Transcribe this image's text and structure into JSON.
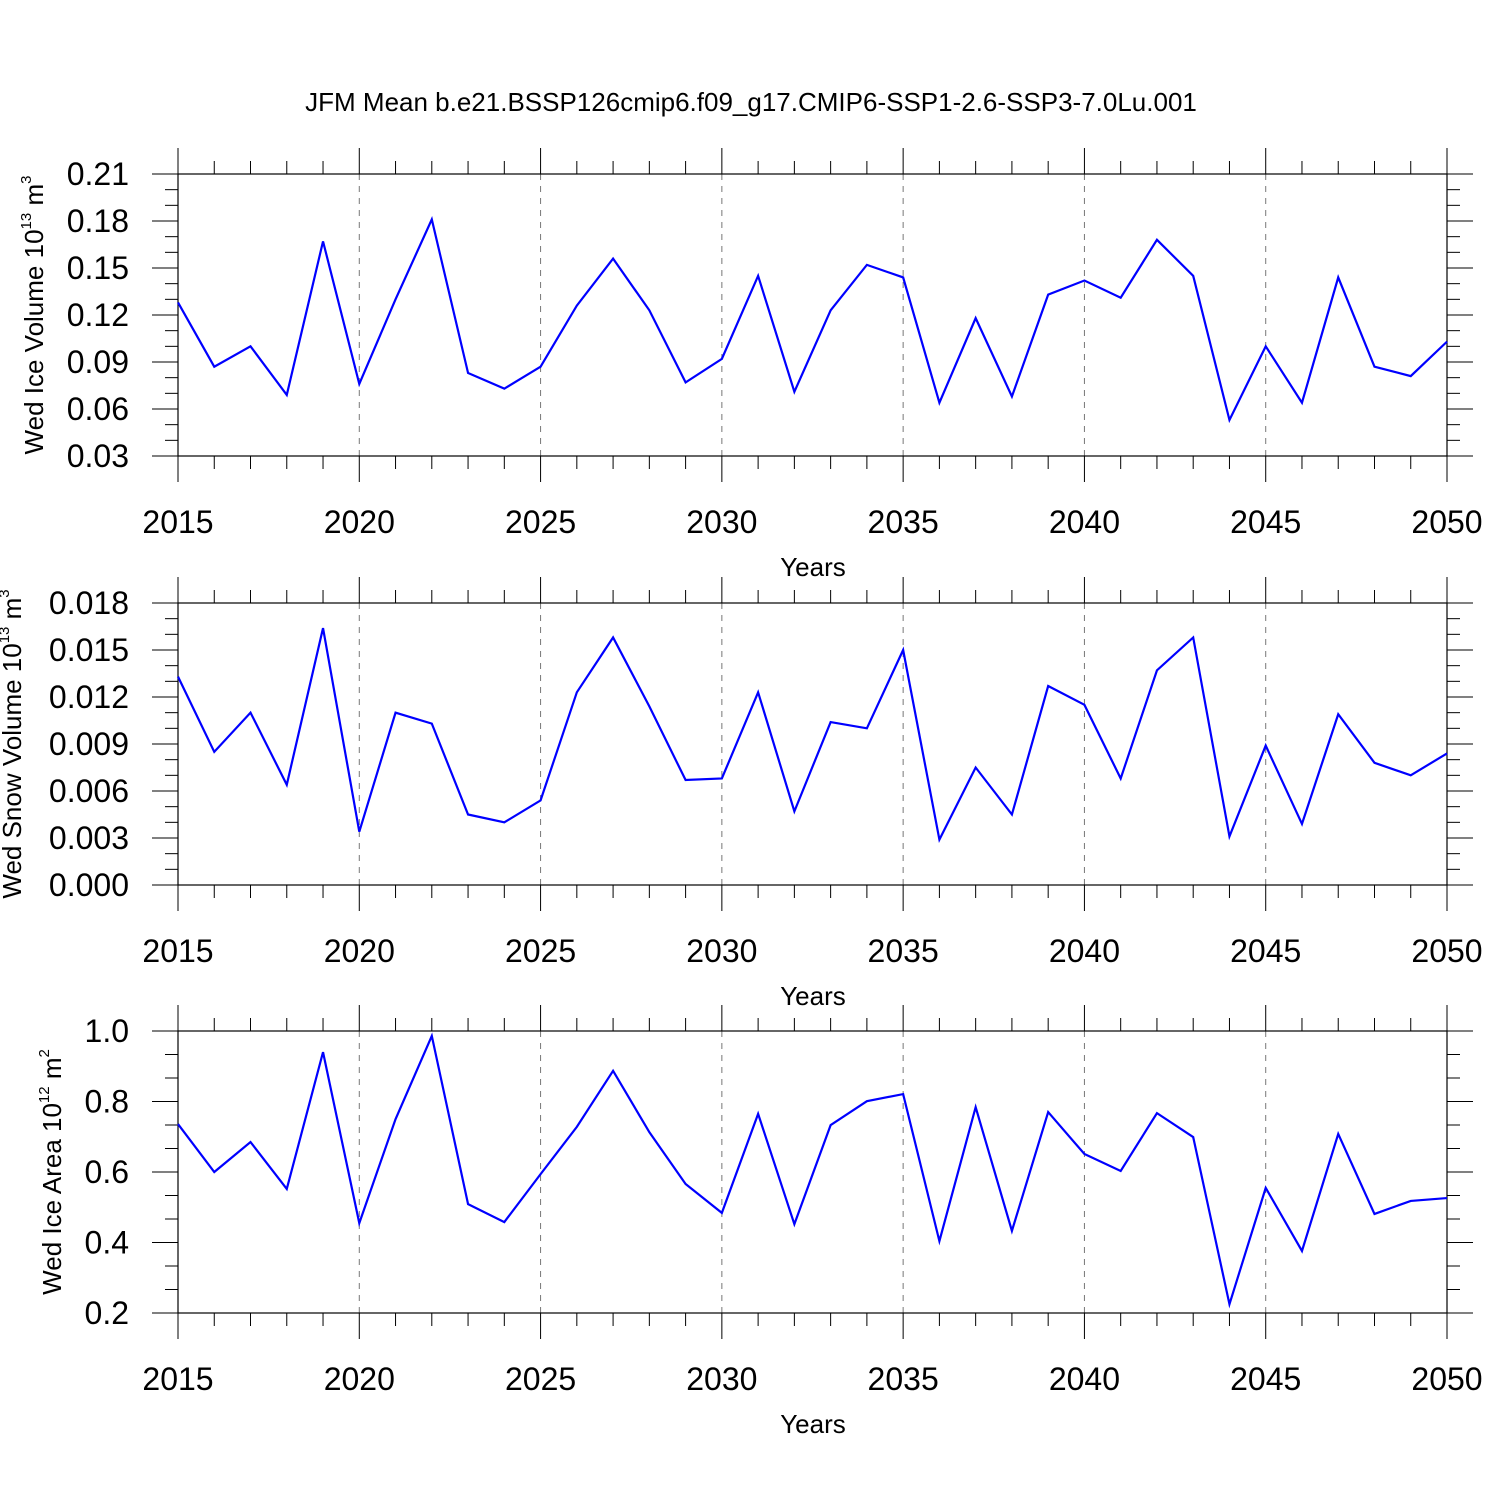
{
  "title": "JFM Mean b.e21.BSSP126cmip6.f09_g17.CMIP6-SSP1-2.6-SSP3-7.0Lu.001",
  "line_color": "#0000ff",
  "chart_data": [
    {
      "type": "line",
      "ylabel": "Wed Ice Volume 10",
      "ylabel_exp": "13",
      "ylabel_unit": " m",
      "ylabel_unit_exp": "3",
      "xlabel": "Years",
      "xlim": [
        2015,
        2050
      ],
      "ylim": [
        0.03,
        0.21
      ],
      "xticks": [
        "2015",
        "2020",
        "2025",
        "2030",
        "2035",
        "2040",
        "2045",
        "2050"
      ],
      "yticks": [
        "0.03",
        "0.06",
        "0.09",
        "0.12",
        "0.15",
        "0.18",
        "0.21"
      ],
      "grid": "vertical dashed at major x ticks",
      "x": [
        2015,
        2016,
        2017,
        2018,
        2019,
        2020,
        2021,
        2022,
        2023,
        2024,
        2025,
        2026,
        2027,
        2028,
        2029,
        2030,
        2031,
        2032,
        2033,
        2034,
        2035,
        2036,
        2037,
        2038,
        2039,
        2040,
        2041,
        2042,
        2043,
        2044,
        2045,
        2046,
        2047,
        2048,
        2049,
        2050
      ],
      "values": [
        0.128,
        0.087,
        0.1,
        0.069,
        0.167,
        0.076,
        0.13,
        0.181,
        0.083,
        0.073,
        0.087,
        0.126,
        0.156,
        0.123,
        0.077,
        0.092,
        0.145,
        0.071,
        0.123,
        0.152,
        0.144,
        0.064,
        0.118,
        0.068,
        0.133,
        0.142,
        0.131,
        0.168,
        0.145,
        0.053,
        0.1,
        0.064,
        0.144,
        0.087,
        0.081,
        0.103
      ]
    },
    {
      "type": "line",
      "ylabel": "Wed Snow Volume 10",
      "ylabel_exp": "13",
      "ylabel_unit": " m",
      "ylabel_unit_exp": "3",
      "xlabel": "Years",
      "xlim": [
        2015,
        2050
      ],
      "ylim": [
        0.0,
        0.018
      ],
      "xticks": [
        "2015",
        "2020",
        "2025",
        "2030",
        "2035",
        "2040",
        "2045",
        "2050"
      ],
      "yticks": [
        "0.000",
        "0.003",
        "0.006",
        "0.009",
        "0.012",
        "0.015",
        "0.018"
      ],
      "grid": "vertical dashed at major x ticks",
      "x": [
        2015,
        2016,
        2017,
        2018,
        2019,
        2020,
        2021,
        2022,
        2023,
        2024,
        2025,
        2026,
        2027,
        2028,
        2029,
        2030,
        2031,
        2032,
        2033,
        2034,
        2035,
        2036,
        2037,
        2038,
        2039,
        2040,
        2041,
        2042,
        2043,
        2044,
        2045,
        2046,
        2047,
        2048,
        2049,
        2050
      ],
      "values": [
        0.0133,
        0.0085,
        0.011,
        0.0064,
        0.0164,
        0.0034,
        0.011,
        0.0103,
        0.0045,
        0.004,
        0.0054,
        0.0123,
        0.0158,
        0.0114,
        0.0067,
        0.0068,
        0.0123,
        0.0047,
        0.0104,
        0.01,
        0.015,
        0.0029,
        0.0075,
        0.0045,
        0.0127,
        0.0115,
        0.0068,
        0.0137,
        0.0158,
        0.0031,
        0.0089,
        0.0039,
        0.0109,
        0.0078,
        0.007,
        0.0084
      ]
    },
    {
      "type": "line",
      "ylabel": "Wed Ice Area 10",
      "ylabel_exp": "12",
      "ylabel_unit": " m",
      "ylabel_unit_exp": "2",
      "xlabel": "Years",
      "xlim": [
        2015,
        2050
      ],
      "ylim": [
        0.2,
        1.0
      ],
      "xticks": [
        "2015",
        "2020",
        "2025",
        "2030",
        "2035",
        "2040",
        "2045",
        "2050"
      ],
      "yticks": [
        "0.2",
        "0.4",
        "0.6",
        "0.8",
        "1.0"
      ],
      "grid": "vertical dashed at major x ticks",
      "x": [
        2015,
        2016,
        2017,
        2018,
        2019,
        2020,
        2021,
        2022,
        2023,
        2024,
        2025,
        2026,
        2027,
        2028,
        2029,
        2030,
        2031,
        2032,
        2033,
        2034,
        2035,
        2036,
        2037,
        2038,
        2039,
        2040,
        2041,
        2042,
        2043,
        2044,
        2045,
        2046,
        2047,
        2048,
        2049,
        2050
      ],
      "values": [
        0.736,
        0.6,
        0.685,
        0.552,
        0.94,
        0.455,
        0.75,
        0.986,
        0.509,
        0.458,
        0.594,
        0.728,
        0.887,
        0.713,
        0.566,
        0.484,
        0.765,
        0.452,
        0.733,
        0.801,
        0.821,
        0.404,
        0.784,
        0.433,
        0.77,
        0.651,
        0.603,
        0.767,
        0.699,
        0.225,
        0.555,
        0.376,
        0.708,
        0.481,
        0.518,
        0.526
      ]
    }
  ]
}
